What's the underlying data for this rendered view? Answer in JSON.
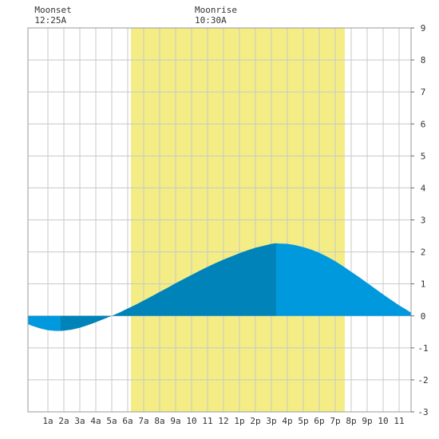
{
  "chart_data": {
    "type": "area",
    "x_unit": "hour of day",
    "xlim": [
      -0.25,
      23.75
    ],
    "ylim": [
      -3,
      9
    ],
    "y_ticks": [
      -3,
      -2,
      -1,
      0,
      1,
      2,
      3,
      4,
      5,
      6,
      7,
      8,
      9
    ],
    "x_ticks": [
      {
        "x": 1,
        "label": "1a"
      },
      {
        "x": 2,
        "label": "2a"
      },
      {
        "x": 3,
        "label": "3a"
      },
      {
        "x": 4,
        "label": "4a"
      },
      {
        "x": 5,
        "label": "5a"
      },
      {
        "x": 6,
        "label": "6a"
      },
      {
        "x": 7,
        "label": "7a"
      },
      {
        "x": 8,
        "label": "8a"
      },
      {
        "x": 9,
        "label": "9a"
      },
      {
        "x": 10,
        "label": "10"
      },
      {
        "x": 11,
        "label": "11"
      },
      {
        "x": 12,
        "label": "12"
      },
      {
        "x": 13,
        "label": "1p"
      },
      {
        "x": 14,
        "label": "2p"
      },
      {
        "x": 15,
        "label": "3p"
      },
      {
        "x": 16,
        "label": "4p"
      },
      {
        "x": 17,
        "label": "5p"
      },
      {
        "x": 18,
        "label": "6p"
      },
      {
        "x": 19,
        "label": "7p"
      },
      {
        "x": 20,
        "label": "8p"
      },
      {
        "x": 21,
        "label": "9p"
      },
      {
        "x": 22,
        "label": "10"
      },
      {
        "x": 23,
        "label": "11"
      }
    ],
    "grid": true,
    "daylight": {
      "start": 6.2,
      "end": 19.6
    },
    "tide": {
      "low": {
        "x": 1.8,
        "y": -0.47
      },
      "high": {
        "x": 15.3,
        "y": 2.27
      }
    },
    "series": [
      {
        "x": [
          -0.25,
          0,
          0.5,
          1,
          1.5,
          1.8,
          2,
          2.5,
          3,
          3.5,
          4,
          4.5,
          5,
          5.5,
          6,
          6.5,
          7,
          7.5,
          8,
          8.5,
          9,
          9.5,
          10,
          10.5,
          11,
          11.5,
          12,
          12.5,
          13,
          13.5,
          14,
          14.5,
          15,
          15.3,
          15.5,
          16,
          16.5,
          17,
          17.5,
          18,
          18.5,
          19,
          19.5,
          20,
          20.5,
          21,
          21.5,
          22,
          22.5,
          23,
          23.5,
          23.75
        ],
        "y": [
          -0.26,
          -0.31,
          -0.39,
          -0.45,
          -0.47,
          -0.47,
          -0.46,
          -0.43,
          -0.37,
          -0.29,
          -0.2,
          -0.1,
          0.0,
          0.11,
          0.23,
          0.35,
          0.48,
          0.61,
          0.75,
          0.88,
          1.02,
          1.15,
          1.28,
          1.41,
          1.53,
          1.65,
          1.76,
          1.86,
          1.96,
          2.05,
          2.13,
          2.19,
          2.25,
          2.27,
          2.26,
          2.25,
          2.21,
          2.15,
          2.07,
          1.97,
          1.85,
          1.71,
          1.55,
          1.38,
          1.21,
          1.03,
          0.85,
          0.67,
          0.5,
          0.33,
          0.18,
          0.1
        ]
      }
    ],
    "fill_colors": {
      "rising": "#0083b8",
      "falling": "#0099dd",
      "daylight": "#f4ed85",
      "grid": "#c8c8c8"
    }
  },
  "annotations": {
    "moonset": {
      "label": "Moonset",
      "time": "12:25A",
      "x": 0.42
    },
    "moonrise": {
      "label": "Moonrise",
      "time": "10:30A",
      "x": 10.5
    }
  }
}
